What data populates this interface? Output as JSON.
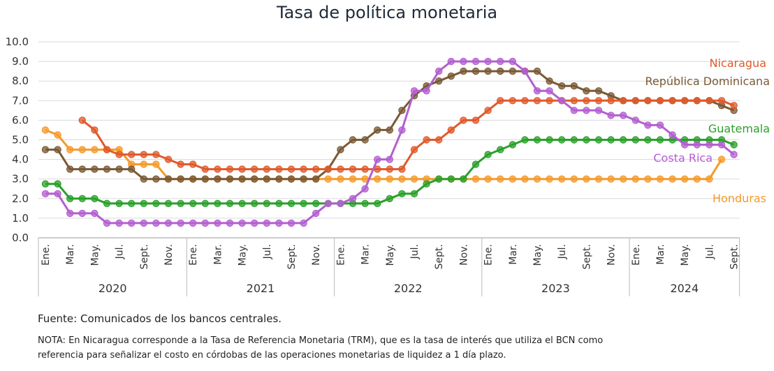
{
  "chart_data": {
    "type": "line",
    "title": "Tasa de política monetaria",
    "ylim": [
      0,
      10
    ],
    "yticks": [
      "0.0",
      "1.0",
      "2.0",
      "3.0",
      "4.0",
      "5.0",
      "6.0",
      "7.0",
      "8.0",
      "9.0",
      "10.0"
    ],
    "month_tick_labels": [
      "Ene.",
      "Mar.",
      "May.",
      "Jul.",
      "Sept.",
      "Nov."
    ],
    "month_tick_labels_2024": [
      "Ene.",
      "Mar.",
      "May.",
      "Jul.",
      "Sept."
    ],
    "years": [
      "2020",
      "2021",
      "2022",
      "2023",
      "2024"
    ],
    "x_count": 57,
    "grid": "horizontal",
    "legend": "labels at right end of lines",
    "series": [
      {
        "name": "Nicaragua",
        "color": "#e05a2b",
        "values": [
          null,
          null,
          null,
          6.0,
          5.5,
          4.5,
          4.25,
          4.25,
          4.25,
          4.25,
          4.0,
          3.75,
          3.75,
          3.5,
          3.5,
          3.5,
          3.5,
          3.5,
          3.5,
          3.5,
          3.5,
          3.5,
          3.5,
          3.5,
          3.5,
          3.5,
          3.5,
          3.5,
          3.5,
          3.5,
          4.5,
          5.0,
          5.0,
          5.5,
          6.0,
          6.0,
          6.5,
          7.0,
          7.0,
          7.0,
          7.0,
          7.0,
          7.0,
          7.0,
          7.0,
          7.0,
          7.0,
          7.0,
          7.0,
          7.0,
          7.0,
          7.0,
          7.0,
          7.0,
          7.0,
          7.0,
          6.75
        ]
      },
      {
        "name": "República Dominicana",
        "color": "#7a5a35",
        "values": [
          4.5,
          4.5,
          3.5,
          3.5,
          3.5,
          3.5,
          3.5,
          3.5,
          3.0,
          3.0,
          3.0,
          3.0,
          3.0,
          3.0,
          3.0,
          3.0,
          3.0,
          3.0,
          3.0,
          3.0,
          3.0,
          3.0,
          3.0,
          3.5,
          4.5,
          5.0,
          5.0,
          5.5,
          5.5,
          6.5,
          7.25,
          7.75,
          8.0,
          8.25,
          8.5,
          8.5,
          8.5,
          8.5,
          8.5,
          8.5,
          8.5,
          8.0,
          7.75,
          7.75,
          7.5,
          7.5,
          7.25,
          7.0,
          7.0,
          7.0,
          7.0,
          7.0,
          7.0,
          7.0,
          7.0,
          6.75,
          6.5
        ]
      },
      {
        "name": "Guatemala",
        "color": "#2aa02a",
        "values": [
          2.75,
          2.75,
          2.0,
          2.0,
          2.0,
          1.75,
          1.75,
          1.75,
          1.75,
          1.75,
          1.75,
          1.75,
          1.75,
          1.75,
          1.75,
          1.75,
          1.75,
          1.75,
          1.75,
          1.75,
          1.75,
          1.75,
          1.75,
          1.75,
          1.75,
          1.75,
          1.75,
          1.75,
          2.0,
          2.25,
          2.25,
          2.75,
          3.0,
          3.0,
          3.0,
          3.75,
          4.25,
          4.5,
          4.75,
          5.0,
          5.0,
          5.0,
          5.0,
          5.0,
          5.0,
          5.0,
          5.0,
          5.0,
          5.0,
          5.0,
          5.0,
          5.0,
          5.0,
          5.0,
          5.0,
          5.0,
          4.75
        ]
      },
      {
        "name": "Costa Rica",
        "color": "#b35fd0",
        "values": [
          2.25,
          2.25,
          1.25,
          1.25,
          1.25,
          0.75,
          0.75,
          0.75,
          0.75,
          0.75,
          0.75,
          0.75,
          0.75,
          0.75,
          0.75,
          0.75,
          0.75,
          0.75,
          0.75,
          0.75,
          0.75,
          0.75,
          1.25,
          1.75,
          1.75,
          2.0,
          2.5,
          4.0,
          4.0,
          5.5,
          7.5,
          7.5,
          8.5,
          9.0,
          9.0,
          9.0,
          9.0,
          9.0,
          9.0,
          8.5,
          7.5,
          7.5,
          7.0,
          6.5,
          6.5,
          6.5,
          6.25,
          6.25,
          6.0,
          5.75,
          5.75,
          5.25,
          4.75,
          4.75,
          4.75,
          4.75,
          4.25
        ]
      },
      {
        "name": "Honduras",
        "color": "#f59a2a",
        "values": [
          5.5,
          5.25,
          4.5,
          4.5,
          4.5,
          4.5,
          4.5,
          3.75,
          3.75,
          3.75,
          3.0,
          3.0,
          3.0,
          3.0,
          3.0,
          3.0,
          3.0,
          3.0,
          3.0,
          3.0,
          3.0,
          3.0,
          3.0,
          3.0,
          3.0,
          3.0,
          3.0,
          3.0,
          3.0,
          3.0,
          3.0,
          3.0,
          3.0,
          3.0,
          3.0,
          3.0,
          3.0,
          3.0,
          3.0,
          3.0,
          3.0,
          3.0,
          3.0,
          3.0,
          3.0,
          3.0,
          3.0,
          3.0,
          3.0,
          3.0,
          3.0,
          3.0,
          3.0,
          3.0,
          3.0,
          4.0,
          null
        ]
      }
    ]
  },
  "source": "Fuente: Comunicados de los bancos centrales.",
  "note_line1": "NOTA: En Nicaragua corresponde a la Tasa de Referencia Monetaria (TRM), que es la tasa de interés que utiliza el BCN como",
  "note_line2": "referencia para señalizar el costo en córdobas de las operaciones monetarias de liquidez a 1 día plazo."
}
